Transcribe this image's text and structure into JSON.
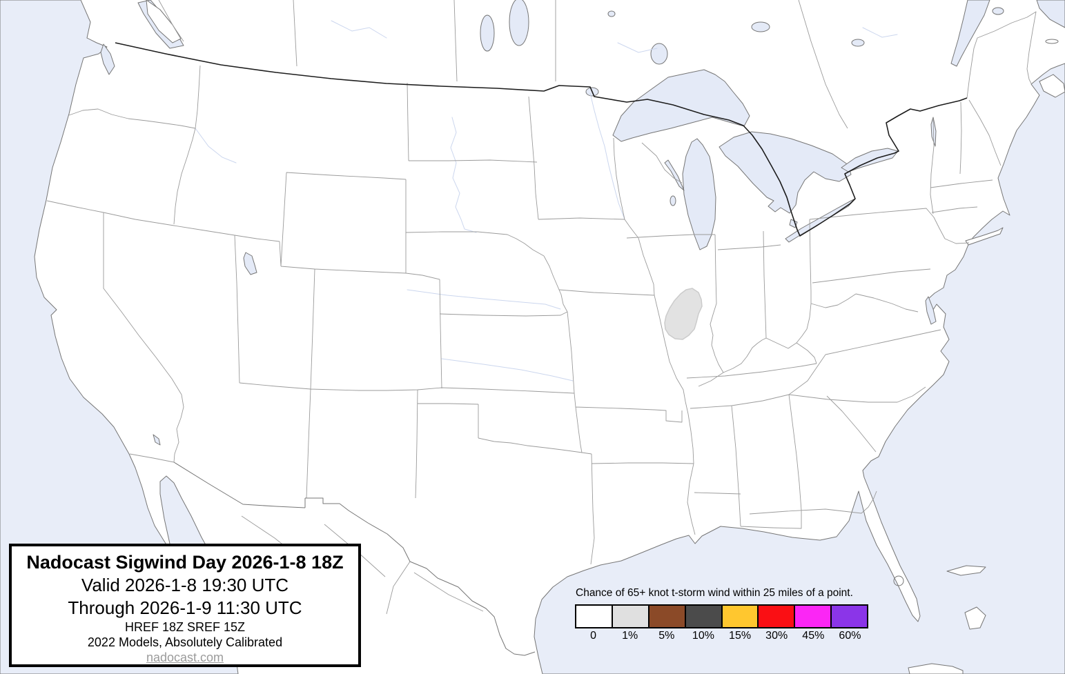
{
  "title_box": {
    "title": "Nadocast Sigwind Day 2026-1-8 18Z",
    "valid": "Valid 2026-1-8 19:30 UTC",
    "through": "Through 2026-1-9 11:30 UTC",
    "models": "HREF 18Z SREF 15Z",
    "calibration": "2022 Models, Absolutely Calibrated",
    "website": "nadocast.com"
  },
  "legend": {
    "title": "Chance of 65+ knot t-storm wind within 25 miles of a point.",
    "entries": [
      {
        "label": "0",
        "color": "#FFFFFF"
      },
      {
        "label": "1%",
        "color": "#E0E0E0"
      },
      {
        "label": "5%",
        "color": "#8B4A28"
      },
      {
        "label": "10%",
        "color": "#4B4B4B"
      },
      {
        "label": "15%",
        "color": "#FFC72F"
      },
      {
        "label": "30%",
        "color": "#FA0F14"
      },
      {
        "label": "45%",
        "color": "#FB26F5"
      },
      {
        "label": "60%",
        "color": "#8B35E8"
      }
    ]
  },
  "map": {
    "colors": {
      "ocean": "#E8EDF8",
      "lake": "#E4EAF7",
      "land": "#FFFFFF",
      "state_border": "#9A9A9A",
      "coastline": "#757575",
      "national_border": "#1C1C1C",
      "river": "#CBD6EE",
      "forecast_area_fill": "#E2E2E2",
      "forecast_area_outline": "#CBCBCB"
    },
    "forecast_areas": [
      {
        "probability": "1%",
        "fill": "#E2E2E2"
      }
    ]
  }
}
